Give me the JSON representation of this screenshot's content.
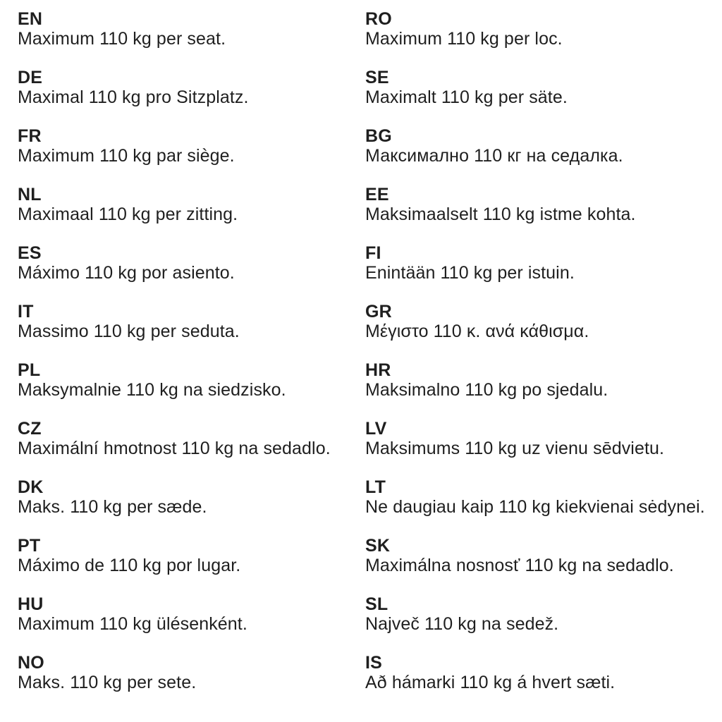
{
  "colors": {
    "text": "#1f1f1f",
    "background": "#ffffff"
  },
  "columns": [
    {
      "entries": [
        {
          "code": "EN",
          "text": "Maximum 110 kg per seat."
        },
        {
          "code": "DE",
          "text": "Maximal 110 kg pro Sitzplatz."
        },
        {
          "code": "FR",
          "text": "Maximum 110 kg par siège."
        },
        {
          "code": "NL",
          "text": "Maximaal 110 kg per zitting."
        },
        {
          "code": "ES",
          "text": "Máximo 110 kg por asiento."
        },
        {
          "code": "IT",
          "text": "Massimo 110 kg per seduta."
        },
        {
          "code": "PL",
          "text": "Maksymalnie 110 kg na siedzisko."
        },
        {
          "code": "CZ",
          "text": "Maximální hmotnost 110 kg na sedadlo."
        },
        {
          "code": "DK",
          "text": "Maks. 110 kg per sæde."
        },
        {
          "code": "PT",
          "text": "Máximo de 110 kg por lugar."
        },
        {
          "code": "HU",
          "text": "Maximum 110 kg ülésenként."
        },
        {
          "code": "NO",
          "text": "Maks. 110 kg per sete."
        }
      ]
    },
    {
      "entries": [
        {
          "code": "RO",
          "text": "Maximum 110 kg per loc."
        },
        {
          "code": "SE",
          "text": "Maximalt 110 kg per säte."
        },
        {
          "code": "BG",
          "text": "Максимално 110 кг на седалка."
        },
        {
          "code": "EE",
          "text": "Maksimaalselt 110 kg istme kohta."
        },
        {
          "code": "FI",
          "text": "Enintään 110 kg per istuin."
        },
        {
          "code": "GR",
          "text": "Μέγιστο 110 κ. ανά κάθισμα."
        },
        {
          "code": "HR",
          "text": "Maksimalno 110 kg po sjedalu."
        },
        {
          "code": "LV",
          "text": "Maksimums 110 kg uz vienu sēdvietu."
        },
        {
          "code": "LT",
          "text": "Ne daugiau kaip 110 kg kiekvienai sėdynei."
        },
        {
          "code": "SK",
          "text": "Maximálna nosnosť 110 kg na sedadlo."
        },
        {
          "code": "SL",
          "text": "Največ 110 kg na sedež."
        },
        {
          "code": "IS",
          "text": "Að hámarki 110 kg á hvert sæti."
        }
      ]
    }
  ]
}
